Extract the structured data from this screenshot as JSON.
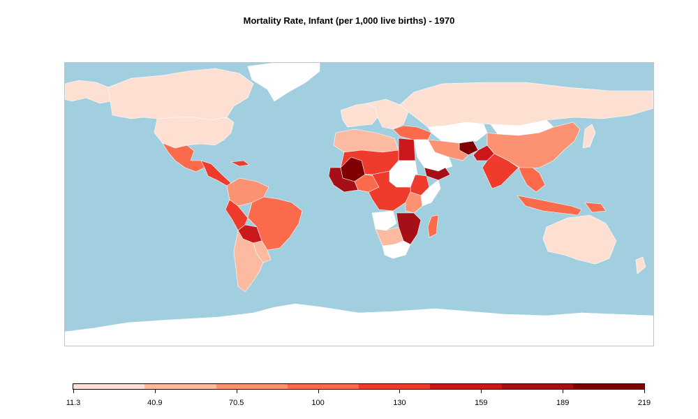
{
  "title": "Mortality Rate, Infant (per 1,000 live births) -  1970",
  "colors": {
    "ocean": "#a2cfe0",
    "no_data": "#ffffff",
    "border": "#ffffff",
    "legend": [
      "#fde0d2",
      "#fcbba1",
      "#fc9272",
      "#fb6a4a",
      "#ef3b2c",
      "#cb181d",
      "#a50f15",
      "#7f0000"
    ]
  },
  "legend": {
    "breaks": [
      "11.3",
      "40.9",
      "70.5",
      "100",
      "130",
      "159",
      "189",
      "219"
    ]
  },
  "regions": [
    {
      "name": "Alaska",
      "color_class": 0
    },
    {
      "name": "Canada",
      "color_class": 0
    },
    {
      "name": "United States",
      "color_class": 0
    },
    {
      "name": "Greenland",
      "color_class": "no_data"
    },
    {
      "name": "Mexico",
      "color_class": 3
    },
    {
      "name": "Central America",
      "color_class": 4
    },
    {
      "name": "Caribbean",
      "color_class": 4
    },
    {
      "name": "Colombia/Venezuela",
      "color_class": 2
    },
    {
      "name": "Brazil",
      "color_class": 3
    },
    {
      "name": "Peru",
      "color_class": 4
    },
    {
      "name": "Bolivia",
      "color_class": 5
    },
    {
      "name": "Paraguay/Uruguay",
      "color_class": 1
    },
    {
      "name": "Argentina/Chile",
      "color_class": 1
    },
    {
      "name": "Western Europe",
      "color_class": 0
    },
    {
      "name": "Eastern Europe",
      "color_class": 0
    },
    {
      "name": "Russia",
      "color_class": 0
    },
    {
      "name": "Turkey",
      "color_class": 3
    },
    {
      "name": "Central Asia",
      "color_class": "no_data"
    },
    {
      "name": "Mongolia",
      "color_class": "no_data"
    },
    {
      "name": "China",
      "color_class": 2
    },
    {
      "name": "Japan",
      "color_class": 0
    },
    {
      "name": "Afghanistan",
      "color_class": 7
    },
    {
      "name": "Pakistan",
      "color_class": 5
    },
    {
      "name": "India",
      "color_class": 4
    },
    {
      "name": "Southeast Asia",
      "color_class": 3
    },
    {
      "name": "Indonesia",
      "color_class": 3
    },
    {
      "name": "Papua New Guinea",
      "color_class": 3
    },
    {
      "name": "Australia",
      "color_class": 0
    },
    {
      "name": "New Zealand",
      "color_class": 0
    },
    {
      "name": "Arabian Peninsula",
      "color_class": "no_data"
    },
    {
      "name": "Yemen",
      "color_class": 6
    },
    {
      "name": "Iran",
      "color_class": 2
    },
    {
      "name": "North Africa",
      "color_class": 1
    },
    {
      "name": "Egypt",
      "color_class": 5
    },
    {
      "name": "Sahel",
      "color_class": 4
    },
    {
      "name": "Mali",
      "color_class": 7
    },
    {
      "name": "West Africa Coast",
      "color_class": 6
    },
    {
      "name": "Nigeria",
      "color_class": 3
    },
    {
      "name": "Sudan",
      "color_class": "no_data"
    },
    {
      "name": "Ethiopia",
      "color_class": 4
    },
    {
      "name": "Somalia",
      "color_class": "no_data"
    },
    {
      "name": "Kenya/Uganda",
      "color_class": 2
    },
    {
      "name": "Central Africa",
      "color_class": 4
    },
    {
      "name": "Mozambique/Malawi",
      "color_class": 6
    },
    {
      "name": "Madagascar",
      "color_class": 3
    },
    {
      "name": "Angola",
      "color_class": "no_data"
    },
    {
      "name": "Namibia/Botswana",
      "color_class": 1
    },
    {
      "name": "South Africa",
      "color_class": "no_data"
    },
    {
      "name": "Antarctica",
      "color_class": "no_data"
    }
  ]
}
